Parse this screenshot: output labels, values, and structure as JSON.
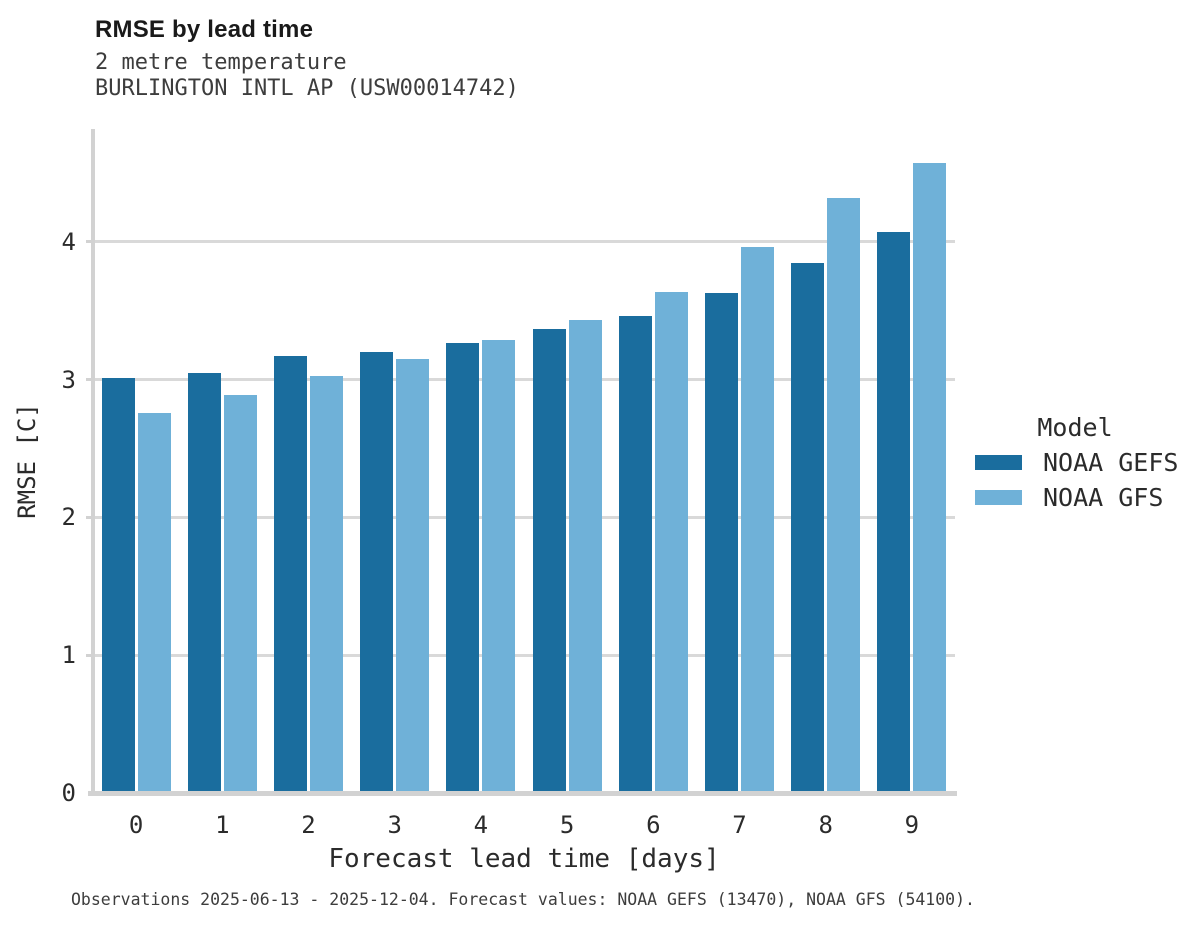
{
  "header": {
    "title": "RMSE by lead time",
    "subtitle_line1": "2 metre temperature",
    "subtitle_line2": "BURLINGTON INTL AP (USW00014742)"
  },
  "footer": {
    "text": "Observations 2025-06-13 - 2025-12-04. Forecast values: NOAA GEFS (13470), NOAA GFS (54100)."
  },
  "chart_data": {
    "type": "bar",
    "title": "RMSE by lead time",
    "subtitle": [
      "2 metre temperature",
      "BURLINGTON INTL AP (USW00014742)"
    ],
    "categories": [
      "0",
      "1",
      "2",
      "3",
      "4",
      "5",
      "6",
      "7",
      "8",
      "9"
    ],
    "series": [
      {
        "name": "NOAA GEFS",
        "color": "#1a6d9e",
        "values": [
          3.01,
          3.05,
          3.17,
          3.2,
          3.27,
          3.37,
          3.46,
          3.63,
          3.85,
          4.07
        ]
      },
      {
        "name": "NOAA GFS",
        "color": "#6fb1d8",
        "values": [
          2.76,
          2.89,
          3.03,
          3.15,
          3.29,
          3.43,
          3.64,
          3.96,
          4.32,
          4.57
        ]
      }
    ],
    "xlabel": "Forecast lead time [days]",
    "ylabel": "RMSE [C]",
    "ylim": [
      0,
      4.82
    ],
    "yticks": [
      0,
      1,
      2,
      3,
      4
    ],
    "grid": "horizontal",
    "legend_title": "Model",
    "legend_position": "right",
    "colors": {
      "gridline": "#d9d9d9",
      "axis": "#d2d2d2",
      "tick_text": "#2b2b2b"
    }
  }
}
